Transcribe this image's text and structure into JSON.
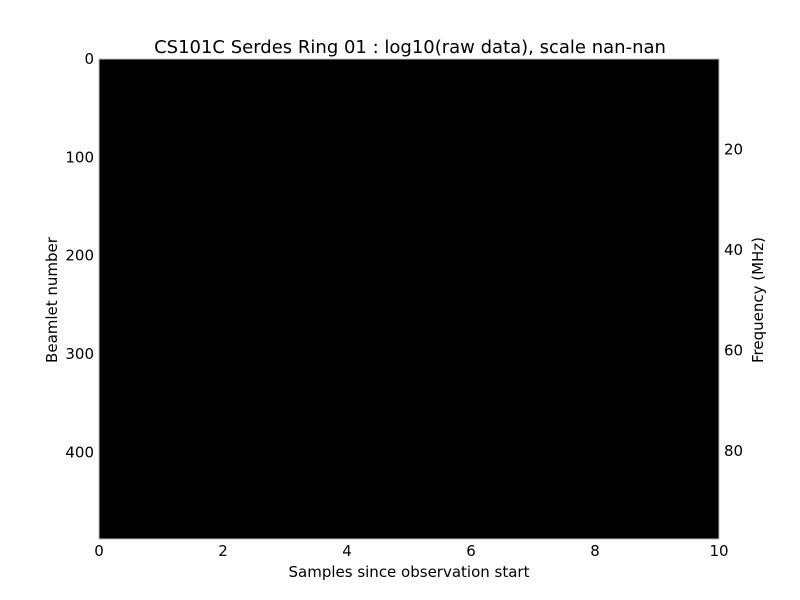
{
  "chart_data": {
    "type": "heatmap",
    "title": "CS101C Serdes Ring 01 : log10(raw data), scale nan-nan",
    "xlabel": "Samples since observation start",
    "ylabel": "Beamlet number",
    "ylabel_right": "Frequency (MHz)",
    "xlim": [
      0,
      10
    ],
    "ylim": [
      488,
      0
    ],
    "ylim_right": [
      97.5,
      2
    ],
    "x_ticks": [
      0,
      2,
      4,
      6,
      8,
      10
    ],
    "y_ticks": [
      0,
      100,
      200,
      300,
      400
    ],
    "y_ticks_right": [
      20,
      40,
      60,
      80
    ],
    "values": "nan",
    "colormap_fill": "#000000",
    "grid": false
  }
}
